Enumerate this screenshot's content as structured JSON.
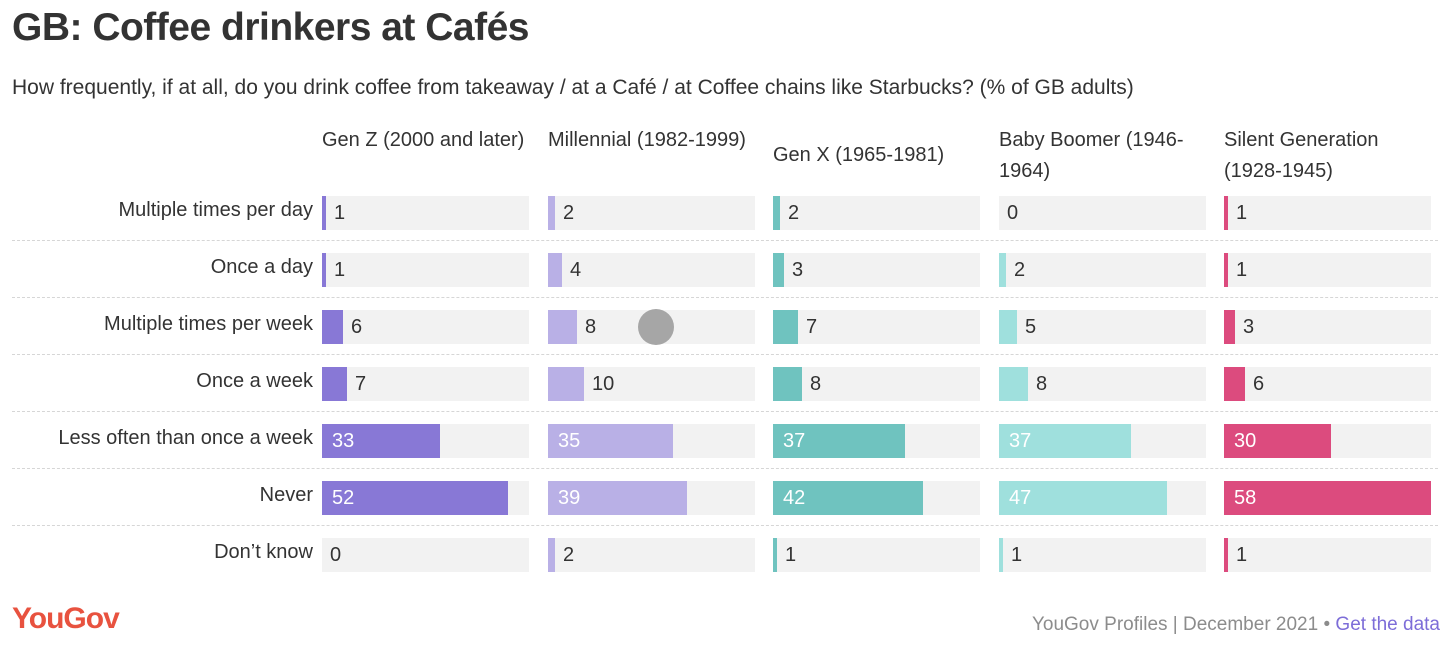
{
  "title": "GB: Coffee drinkers at Cafés",
  "subtitle": "How frequently, if at all, do you drink coffee from takeaway / at a Café / at Coffee chains like Starbucks? (% of GB adults)",
  "footer": {
    "logo": "YouGov",
    "source": "YouGov Profiles | December 2021",
    "separator": "•",
    "link": "Get the data"
  },
  "colors": {
    "gen_z": "#8878d6",
    "millennial": "#b9b0e6",
    "gen_x": "#6fc3bf",
    "boomer": "#9fe0dd",
    "silent": "#dc4b7e",
    "track": "#f2f2f2"
  },
  "chart_data": {
    "type": "bar",
    "orientation": "horizontal-small-multiples",
    "unit": "% of GB adults",
    "xlim": [
      0,
      58
    ],
    "categories": [
      "Multiple times per day",
      "Once a day",
      "Multiple times per week",
      "Once a week",
      "Less often than once a week",
      "Never",
      "Don’t know"
    ],
    "series": [
      {
        "name": "Gen Z (2000 and later)",
        "values": [
          1,
          1,
          6,
          7,
          33,
          52,
          0
        ]
      },
      {
        "name": "Millennial (1982-1999)",
        "values": [
          2,
          4,
          8,
          10,
          35,
          39,
          2
        ]
      },
      {
        "name": "Gen X (1965-1981)",
        "values": [
          2,
          3,
          7,
          8,
          37,
          42,
          1
        ]
      },
      {
        "name": "Baby Boomer (1946-1964)",
        "values": [
          0,
          2,
          5,
          8,
          37,
          47,
          1
        ]
      },
      {
        "name": "Silent Generation (1928-1945)",
        "values": [
          1,
          1,
          3,
          6,
          30,
          58,
          1
        ]
      }
    ]
  }
}
